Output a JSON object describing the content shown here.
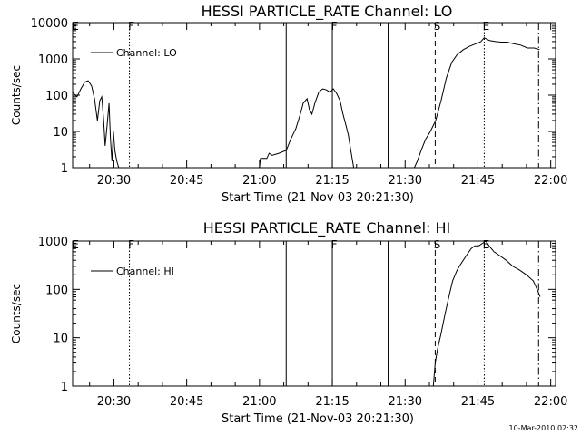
{
  "page": {
    "footer_timestamp": "10-Mar-2010 02:32"
  },
  "chart_data": [
    {
      "type": "line",
      "title": "HESSI PARTICLE_RATE Channel: LO",
      "xlabel": "Start Time (21-Nov-03 20:21:30)",
      "ylabel": "Counts/sec",
      "yscale": "log",
      "ylim": [
        1,
        10000
      ],
      "ytick_values": [
        1,
        10,
        100,
        1000,
        10000
      ],
      "ytick_labels": [
        "1",
        "10",
        "100",
        "1000",
        "10000"
      ],
      "x_unit": "minutes",
      "x_tick_values": [
        30,
        45,
        60,
        75,
        90,
        105,
        120
      ],
      "xtick_labels": [
        "20:30",
        "20:45",
        "21:00",
        "21:15",
        "21:30",
        "21:45",
        "22:00"
      ],
      "xlim": [
        21.5,
        121.0
      ],
      "legend": {
        "entries": [
          "Channel: LO"
        ],
        "placement": "top-left"
      },
      "grid": false,
      "markers": [
        {
          "x": 33.2,
          "style": "dotted",
          "label": "F"
        },
        {
          "x": 65.5,
          "style": "solid",
          "label": ""
        },
        {
          "x": 75.0,
          "style": "solid",
          "label": "F"
        },
        {
          "x": 86.5,
          "style": "solid",
          "label": ""
        },
        {
          "x": 96.2,
          "style": "dashed",
          "label": "S"
        },
        {
          "x": 106.3,
          "style": "dotted",
          "label": "E"
        },
        {
          "x": 117.5,
          "style": "dashdot",
          "label": ""
        }
      ],
      "edge_label": "E",
      "series": [
        {
          "name": "Channel: LO",
          "segments": [
            [
              [
                21.5,
                120
              ],
              [
                22.4,
                90
              ],
              [
                23.2,
                150
              ],
              [
                24.0,
                230
              ],
              [
                24.7,
                250
              ],
              [
                25.4,
                180
              ],
              [
                26.0,
                80
              ],
              [
                26.6,
                20
              ],
              [
                27.1,
                70
              ],
              [
                27.5,
                90
              ],
              [
                27.9,
                20
              ],
              [
                28.2,
                4
              ],
              [
                28.6,
                15
              ],
              [
                29.0,
                60
              ],
              [
                29.3,
                6
              ],
              [
                29.6,
                1.5
              ],
              [
                29.9,
                10
              ],
              [
                30.2,
                3
              ],
              [
                30.6,
                1.5
              ],
              [
                31.0,
                1.0
              ]
            ],
            [
              [
                60.0,
                1.0
              ],
              [
                60.2,
                1.8
              ],
              [
                61.5,
                1.8
              ],
              [
                62.0,
                2.5
              ],
              [
                62.6,
                2.2
              ],
              [
                64.0,
                2.5
              ],
              [
                65.5,
                3
              ],
              [
                66.4,
                6
              ],
              [
                67.5,
                12
              ],
              [
                68.4,
                30
              ],
              [
                69.0,
                60
              ],
              [
                69.8,
                80
              ],
              [
                70.3,
                40
              ],
              [
                70.8,
                30
              ],
              [
                71.4,
                60
              ],
              [
                72.2,
                120
              ],
              [
                73.0,
                150
              ],
              [
                73.8,
                140
              ],
              [
                74.5,
                120
              ],
              [
                75.2,
                150
              ],
              [
                75.9,
                110
              ],
              [
                76.6,
                70
              ],
              [
                77.2,
                30
              ],
              [
                77.8,
                15
              ],
              [
                78.3,
                8
              ],
              [
                78.8,
                3
              ],
              [
                79.4,
                1.0
              ]
            ],
            [
              [
                91.9,
                1.0
              ],
              [
                92.5,
                1.5
              ],
              [
                93.3,
                3
              ],
              [
                94.2,
                6
              ],
              [
                95.2,
                10
              ],
              [
                96.3,
                20
              ],
              [
                97.4,
                70
              ],
              [
                98.5,
                300
              ],
              [
                99.6,
                800
              ],
              [
                100.7,
                1300
              ],
              [
                102.0,
                1800
              ],
              [
                103.2,
                2200
              ],
              [
                104.5,
                2600
              ],
              [
                105.6,
                3000
              ],
              [
                106.3,
                3800
              ],
              [
                107.4,
                3200
              ],
              [
                108.6,
                3000
              ],
              [
                109.8,
                2900
              ],
              [
                111.0,
                2900
              ],
              [
                112.4,
                2600
              ],
              [
                113.8,
                2400
              ],
              [
                115.2,
                2000
              ],
              [
                116.6,
                2000
              ],
              [
                117.7,
                1800
              ]
            ]
          ]
        }
      ]
    },
    {
      "type": "line",
      "title": "HESSI PARTICLE_RATE Channel: HI",
      "xlabel": "Start Time (21-Nov-03 20:21:30)",
      "ylabel": "Counts/sec",
      "yscale": "log",
      "ylim": [
        1,
        1000
      ],
      "ytick_values": [
        1,
        10,
        100,
        1000
      ],
      "ytick_labels": [
        "1",
        "10",
        "100",
        "1000"
      ],
      "x_unit": "minutes",
      "x_tick_values": [
        30,
        45,
        60,
        75,
        90,
        105,
        120
      ],
      "xtick_labels": [
        "20:30",
        "20:45",
        "21:00",
        "21:15",
        "21:30",
        "21:45",
        "22:00"
      ],
      "xlim": [
        21.5,
        121.0
      ],
      "legend": {
        "entries": [
          "Channel: HI"
        ],
        "placement": "top-left"
      },
      "grid": false,
      "markers": [
        {
          "x": 33.2,
          "style": "dotted",
          "label": "F"
        },
        {
          "x": 65.5,
          "style": "solid",
          "label": ""
        },
        {
          "x": 75.0,
          "style": "solid",
          "label": "F"
        },
        {
          "x": 86.5,
          "style": "solid",
          "label": ""
        },
        {
          "x": 96.2,
          "style": "dashed",
          "label": "S"
        },
        {
          "x": 106.3,
          "style": "dotted",
          "label": "E"
        },
        {
          "x": 117.5,
          "style": "dashdot",
          "label": ""
        }
      ],
      "edge_label": "E",
      "series": [
        {
          "name": "Channel: HI",
          "segments": [
            [
              [
                95.8,
                1.0
              ],
              [
                96.2,
                3
              ],
              [
                96.7,
                6
              ],
              [
                97.4,
                12
              ],
              [
                98.2,
                30
              ],
              [
                99.0,
                70
              ],
              [
                99.8,
                150
              ],
              [
                100.7,
                250
              ],
              [
                101.6,
                350
              ],
              [
                102.6,
                500
              ],
              [
                103.6,
                700
              ],
              [
                104.4,
                800
              ],
              [
                105.2,
                800
              ],
              [
                106.0,
                900
              ],
              [
                106.6,
                1000
              ],
              [
                107.3,
                800
              ],
              [
                108.3,
                600
              ],
              [
                109.5,
                500
              ],
              [
                110.8,
                400
              ],
              [
                112.2,
                300
              ],
              [
                113.6,
                250
              ],
              [
                115.0,
                200
              ],
              [
                116.4,
                150
              ],
              [
                117.4,
                90
              ],
              [
                117.8,
                70
              ]
            ]
          ]
        }
      ]
    }
  ]
}
